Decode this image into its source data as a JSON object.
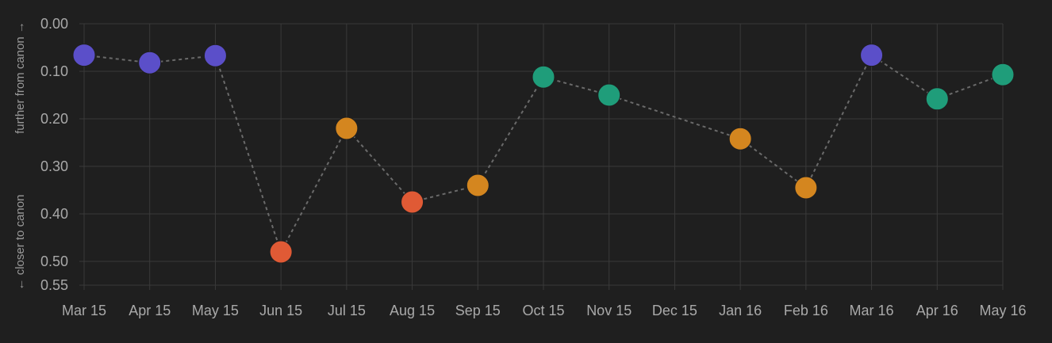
{
  "chart_data": {
    "type": "scatter",
    "title": "",
    "xlabel": "",
    "ylabel_upper": "further from canon →",
    "ylabel_lower": "← closer to canon",
    "y_inverted": true,
    "ylim": [
      0.0,
      0.55
    ],
    "ytick_values": [
      0.0,
      0.1,
      0.2,
      0.3,
      0.4,
      0.5,
      0.55
    ],
    "ytick_labels": [
      "0.00",
      "0.10",
      "0.20",
      "0.30",
      "0.40",
      "0.50",
      "0.55"
    ],
    "categories": [
      "Mar 15",
      "Apr 15",
      "May 15",
      "Jun 15",
      "Jul 15",
      "Aug 15",
      "Sep 15",
      "Oct 15",
      "Nov 15",
      "Dec 15",
      "Jan 16",
      "Feb 16",
      "Mar 16",
      "Apr 16",
      "May 16"
    ],
    "grid": true,
    "connector_line": "dashed",
    "points": [
      {
        "x": "Mar 15",
        "y": 0.066,
        "color": "#5b4fc9"
      },
      {
        "x": "Apr 15",
        "y": 0.082,
        "color": "#5b4fc9"
      },
      {
        "x": "May 15",
        "y": 0.067,
        "color": "#5b4fc9"
      },
      {
        "x": "Jun 15",
        "y": 0.48,
        "color": "#e05a35"
      },
      {
        "x": "Jul 15",
        "y": 0.22,
        "color": "#d4861f"
      },
      {
        "x": "Aug 15",
        "y": 0.375,
        "color": "#e05a35"
      },
      {
        "x": "Sep 15",
        "y": 0.34,
        "color": "#d4861f"
      },
      {
        "x": "Oct 15",
        "y": 0.112,
        "color": "#1f9d7a"
      },
      {
        "x": "Nov 15",
        "y": 0.15,
        "color": "#1f9d7a"
      },
      {
        "x": "Jan 16",
        "y": 0.242,
        "color": "#d4861f"
      },
      {
        "x": "Feb 16",
        "y": 0.345,
        "color": "#d4861f"
      },
      {
        "x": "Mar 16",
        "y": 0.066,
        "color": "#5b4fc9"
      },
      {
        "x": "Apr 16",
        "y": 0.158,
        "color": "#1f9d7a"
      },
      {
        "x": "May 16",
        "y": 0.107,
        "color": "#1f9d7a"
      }
    ]
  }
}
